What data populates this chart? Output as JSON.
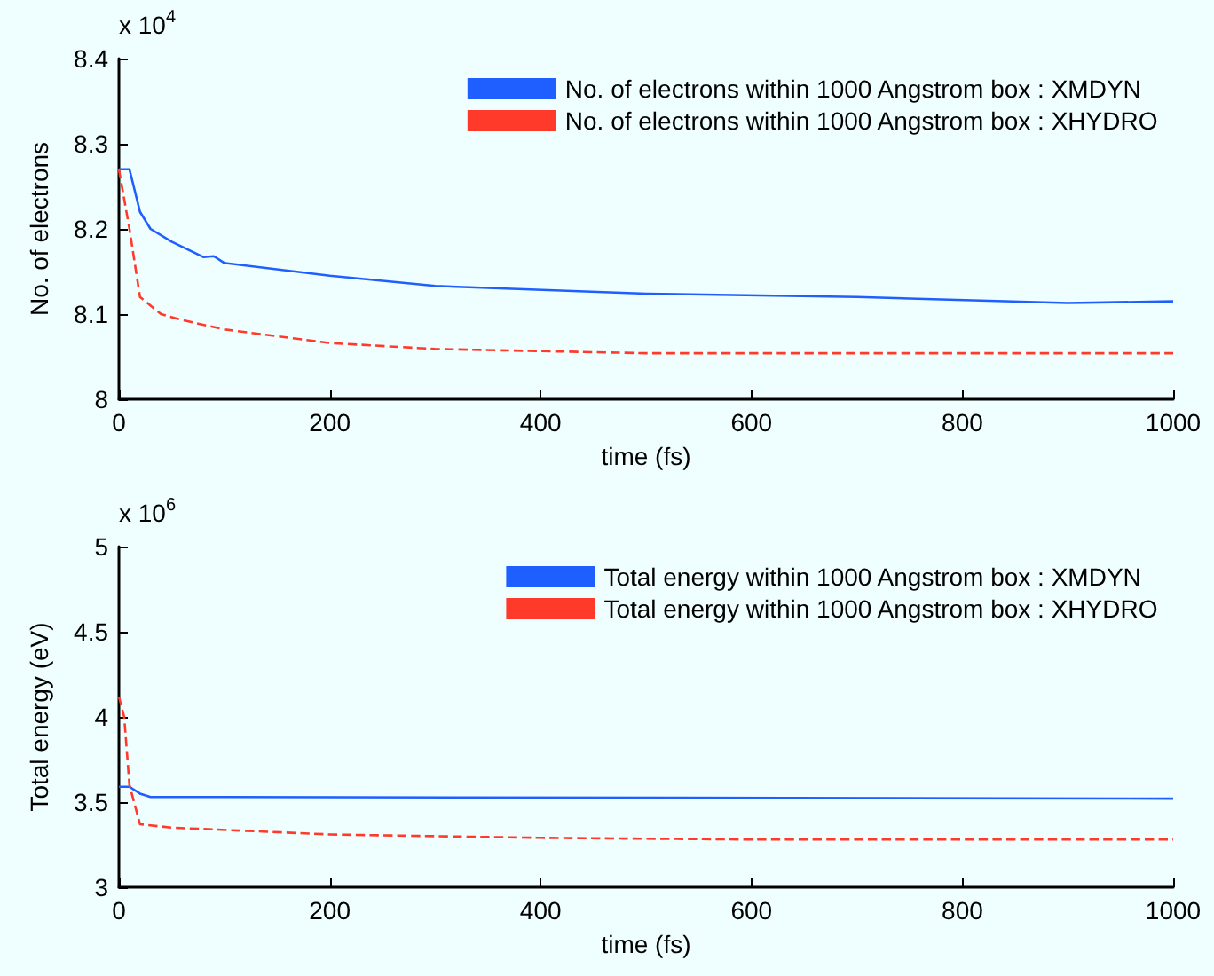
{
  "chart_data": [
    {
      "type": "line",
      "xlabel": "time (fs)",
      "ylabel": "No. of electrons",
      "annotations": [
        "x 10$^{4}$"
      ],
      "xlim": [
        0,
        1000
      ],
      "xticks": [
        0,
        200,
        400,
        600,
        800,
        1000
      ],
      "ylim": [
        8,
        8.4
      ],
      "yticks": [
        8,
        8.1,
        8.2,
        8.3,
        8.4
      ],
      "grid": false,
      "legend": "top right",
      "marker": "none",
      "series": [
        {
          "name": "No. of electrons within 1000 Angstrom box : XMDYN",
          "color": "#1f5fff",
          "line_style": "solid",
          "x": [
            0,
            10,
            20,
            30,
            50,
            80,
            90,
            100,
            200,
            300,
            500,
            700,
            900,
            1000
          ],
          "values": [
            8.27,
            8.27,
            8.22,
            8.2,
            8.185,
            8.167,
            8.168,
            8.16,
            8.145,
            8.133,
            8.124,
            8.12,
            8.113,
            8.115
          ]
        },
        {
          "name": "No. of electrons within 1000 Angstrom box : XHYDRO",
          "color": "#ff3a2a",
          "line_style": "dashed",
          "x": [
            0,
            10,
            20,
            40,
            60,
            100,
            200,
            300,
            500,
            700,
            1000
          ],
          "values": [
            8.27,
            8.2,
            8.12,
            8.1,
            8.093,
            8.082,
            8.066,
            8.059,
            8.054,
            8.054,
            8.054
          ]
        }
      ]
    },
    {
      "type": "line",
      "xlabel": "time (fs)",
      "ylabel": "Total energy (eV)",
      "annotations": [
        "x 10$^{6}$"
      ],
      "xlim": [
        0,
        1000
      ],
      "xticks": [
        0,
        200,
        400,
        600,
        800,
        1000
      ],
      "ylim": [
        3,
        5
      ],
      "yticks": [
        3,
        3.5,
        4,
        4.5,
        5
      ],
      "grid": false,
      "legend": "top right",
      "marker": "none",
      "series": [
        {
          "name": "Total energy within 1000 Angstrom box : XMDYN",
          "color": "#1f5fff",
          "line_style": "solid",
          "x": [
            0,
            10,
            20,
            30,
            100,
            1000
          ],
          "values": [
            3.59,
            3.59,
            3.55,
            3.53,
            3.53,
            3.52
          ]
        },
        {
          "name": "Total energy within 1000 Angstrom box : XHYDRO",
          "color": "#ff3a2a",
          "line_style": "dashed",
          "x": [
            0,
            5,
            10,
            20,
            50,
            200,
            400,
            600,
            1000
          ],
          "values": [
            4.12,
            4.0,
            3.6,
            3.37,
            3.35,
            3.31,
            3.29,
            3.28,
            3.28
          ]
        }
      ]
    }
  ]
}
